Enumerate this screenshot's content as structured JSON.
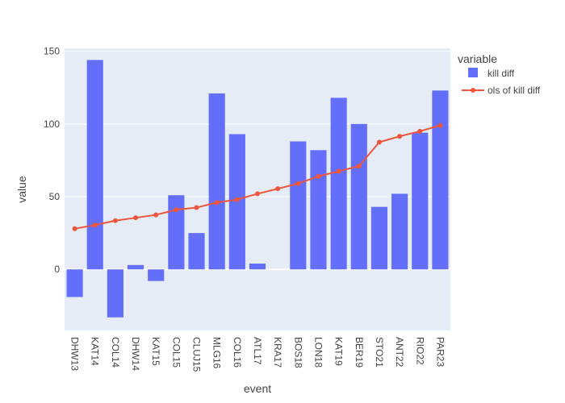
{
  "chart_data": {
    "type": "bar",
    "categories": [
      "DHW13",
      "KAT14",
      "COL14",
      "DHW14",
      "KAT15",
      "COL15",
      "CLUJ15",
      "MLG16",
      "COL16",
      "ATL17",
      "KRA17",
      "BOS18",
      "LON18",
      "KAT19",
      "BER19",
      "STO21",
      "ANT22",
      "RIO22",
      "PAR23"
    ],
    "series": [
      {
        "name": "kill diff",
        "type": "bar",
        "values": [
          -19,
          144,
          -33,
          3,
          -8,
          51,
          25,
          121,
          93,
          4,
          0,
          88,
          82,
          118,
          100,
          43,
          52,
          94,
          123
        ]
      },
      {
        "name": "ols of kill diff",
        "type": "line",
        "values": [
          28,
          30.5,
          33.5,
          35.5,
          37.5,
          41,
          42.5,
          46,
          48,
          52,
          55.5,
          59,
          64,
          67.5,
          71,
          87.5,
          91.5,
          95,
          99
        ]
      }
    ],
    "xlabel": "event",
    "ylabel": "value",
    "ylim": [
      -42,
      152
    ],
    "yticks": [
      0,
      50,
      100,
      150
    ],
    "legend_title": "variable",
    "legend_position": "top-right",
    "grid": true,
    "colors": {
      "bar": "#636efa",
      "line": "#ef553b",
      "plot_bg": "#e5ecf6",
      "grid": "#ffffff",
      "text": "#444444"
    }
  }
}
